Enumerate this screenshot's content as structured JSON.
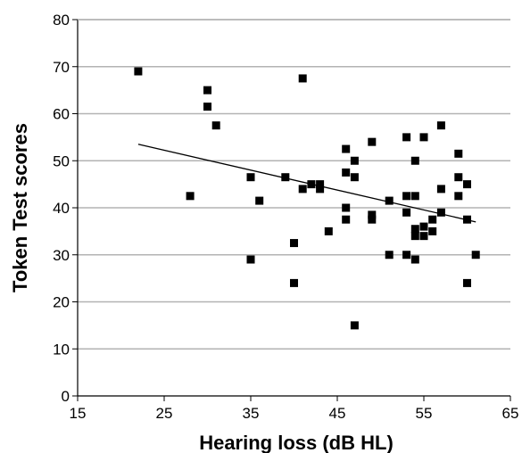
{
  "chart_data": {
    "type": "scatter",
    "title": "",
    "xlabel": "Hearing loss (dB HL)",
    "ylabel": "Token Test scores",
    "xlim": [
      15,
      65
    ],
    "ylim": [
      0,
      80
    ],
    "x_ticks": [
      "15",
      "25",
      "35",
      "45",
      "55",
      "65"
    ],
    "y_ticks": [
      "0",
      "10",
      "20",
      "30",
      "40",
      "50",
      "60",
      "70",
      "80"
    ],
    "grid": "horizontal",
    "marker_color": "#000000",
    "series": [
      {
        "points": [
          [
            22,
            69
          ],
          [
            28,
            42.5
          ],
          [
            30,
            65
          ],
          [
            30,
            61.5
          ],
          [
            31,
            57.5
          ],
          [
            35,
            46.5
          ],
          [
            35,
            29
          ],
          [
            36,
            41.5
          ],
          [
            39,
            46.5
          ],
          [
            40,
            24
          ],
          [
            40,
            32.5
          ],
          [
            41,
            67.5
          ],
          [
            41,
            44
          ],
          [
            42,
            45
          ],
          [
            43,
            44
          ],
          [
            43,
            45
          ],
          [
            44,
            35
          ],
          [
            46,
            52.5
          ],
          [
            46,
            47.5
          ],
          [
            46,
            40
          ],
          [
            46,
            37.5
          ],
          [
            47,
            50
          ],
          [
            47,
            46.5
          ],
          [
            47,
            15
          ],
          [
            49,
            54
          ],
          [
            49,
            38.5
          ],
          [
            49,
            37.5
          ],
          [
            51,
            41.5
          ],
          [
            51,
            30
          ],
          [
            53,
            55
          ],
          [
            53,
            42.5
          ],
          [
            53,
            39
          ],
          [
            53,
            30
          ],
          [
            54,
            42.5
          ],
          [
            54,
            50
          ],
          [
            54,
            35.5
          ],
          [
            54,
            34
          ],
          [
            54,
            29
          ],
          [
            55,
            55
          ],
          [
            55,
            34
          ],
          [
            55,
            36
          ],
          [
            56,
            37.5
          ],
          [
            56,
            35
          ],
          [
            57,
            57.5
          ],
          [
            57,
            44
          ],
          [
            57,
            39
          ],
          [
            59,
            51.5
          ],
          [
            59,
            46.5
          ],
          [
            59,
            42.5
          ],
          [
            60,
            45
          ],
          [
            60,
            37.5
          ],
          [
            60,
            24
          ],
          [
            61,
            30
          ]
        ]
      }
    ],
    "trendline": {
      "x": [
        22,
        61
      ],
      "y": [
        53.5,
        37
      ]
    }
  }
}
